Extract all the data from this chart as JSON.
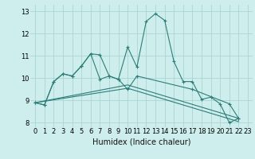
{
  "xlabel": "Humidex (Indice chaleur)",
  "background_color": "#ceeeed",
  "grid_color": "#aad4d3",
  "line_color": "#2d7d78",
  "xlim": [
    -0.5,
    23.5
  ],
  "ylim": [
    7.8,
    13.3
  ],
  "yticks": [
    8,
    9,
    10,
    11,
    12,
    13
  ],
  "xticks": [
    0,
    1,
    2,
    3,
    4,
    5,
    6,
    7,
    8,
    9,
    10,
    11,
    12,
    13,
    14,
    15,
    16,
    17,
    18,
    19,
    20,
    21,
    22,
    23
  ],
  "series1": [
    [
      0,
      8.9
    ],
    [
      1,
      8.8
    ],
    [
      2,
      9.85
    ],
    [
      3,
      10.2
    ],
    [
      4,
      10.1
    ],
    [
      5,
      10.55
    ],
    [
      6,
      11.1
    ],
    [
      7,
      11.05
    ],
    [
      8,
      10.1
    ],
    [
      9,
      9.95
    ],
    [
      10,
      11.4
    ],
    [
      11,
      10.5
    ],
    [
      12,
      12.55
    ],
    [
      13,
      12.9
    ],
    [
      14,
      12.6
    ],
    [
      15,
      10.75
    ],
    [
      16,
      9.85
    ],
    [
      17,
      9.85
    ],
    [
      18,
      9.05
    ],
    [
      19,
      9.15
    ],
    [
      20,
      8.85
    ],
    [
      21,
      8.0
    ],
    [
      22,
      8.2
    ]
  ],
  "series2": [
    [
      0,
      8.9
    ],
    [
      1,
      8.8
    ],
    [
      2,
      9.85
    ],
    [
      3,
      10.2
    ],
    [
      4,
      10.1
    ],
    [
      5,
      10.55
    ],
    [
      6,
      11.1
    ],
    [
      7,
      9.95
    ],
    [
      8,
      10.1
    ],
    [
      9,
      9.95
    ],
    [
      10,
      9.5
    ],
    [
      11,
      10.1
    ],
    [
      17,
      9.5
    ],
    [
      21,
      8.85
    ],
    [
      22,
      8.2
    ]
  ],
  "series3": [
    [
      0,
      8.9
    ],
    [
      10,
      9.7
    ],
    [
      22,
      8.2
    ]
  ],
  "series4": [
    [
      0,
      8.9
    ],
    [
      10,
      9.55
    ],
    [
      22,
      8.05
    ]
  ]
}
